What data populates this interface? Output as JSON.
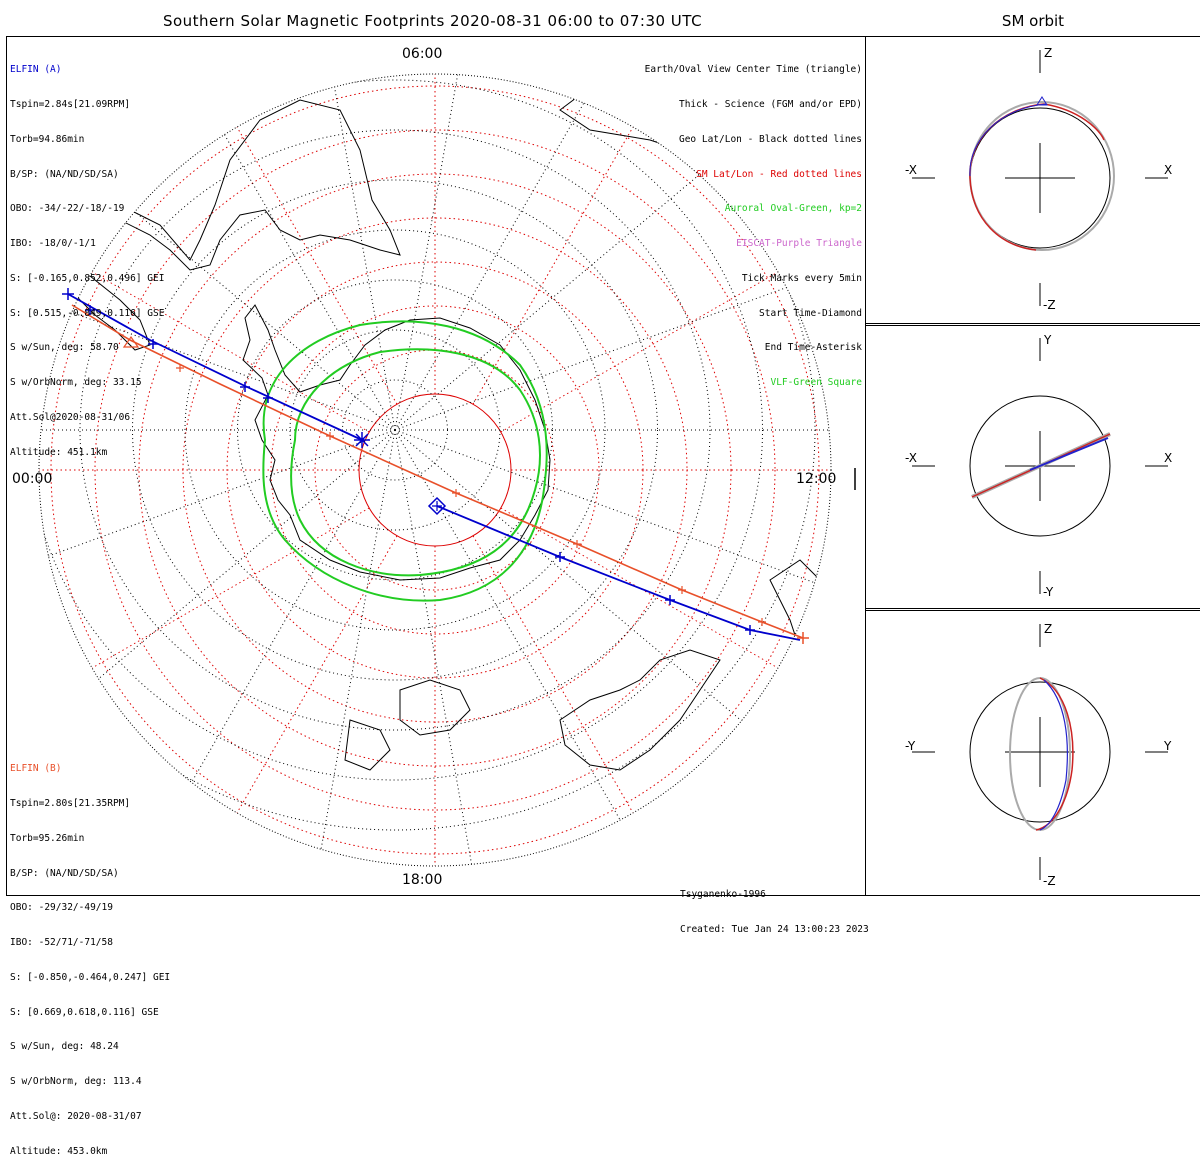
{
  "title": "Southern Solar Magnetic Footprints 2020-08-31 06:00 to 07:30 UTC",
  "sm_title": "SM orbit",
  "map": {
    "time_labels": {
      "top": "06:00",
      "left": "00:00",
      "right": "12:00",
      "bottom": "18:00"
    },
    "colors": {
      "elfin_a": "#0000cc",
      "elfin_b": "#e8502a",
      "oval": "#22cc22",
      "geo_grid": "#000000",
      "sm_grid": "#dd0000"
    }
  },
  "elfin_a": {
    "name": "ELFIN (A)",
    "lines": [
      "Tspin=2.84s[21.09RPM]",
      "Torb=94.86min",
      "B/SP: (NA/ND/SD/SA)",
      "OBO: -34/-22/-18/-19",
      "IBO: -18/0/-1/1",
      "S: [-0.165,0.852,0.496] GEI",
      "S: [0.515,-0.849,0.116] GSE",
      "S w/Sun, deg: 58.70",
      "S w/OrbNorm, deg: 33.15",
      "Att.Sol@2020-08-31/06",
      "Altitude: 451.1km"
    ]
  },
  "elfin_b": {
    "name": "ELFIN (B)",
    "lines": [
      "Tspin=2.80s[21.35RPM]",
      "Torb=95.26min",
      "B/SP: (NA/ND/SD/SA)",
      "OBO: -29/32/-49/19",
      "IBO: -52/71/-71/58",
      "S: [-0.850,-0.464,0.247] GEI",
      "S: [0.669,0.618,0.116] GSE",
      "S w/Sun, deg: 48.24",
      "S w/OrbNorm, deg: 113.4",
      "Att.Sol@: 2020-08-31/07",
      "Altitude: 453.0km"
    ]
  },
  "legend": [
    {
      "text": "Earth/Oval View Center Time (triangle)",
      "color": "#000000"
    },
    {
      "text": "Thick - Science (FGM and/or EPD)",
      "color": "#000000"
    },
    {
      "text": "Geo Lat/Lon - Black dotted lines",
      "color": "#000000"
    },
    {
      "text": "SM Lat/Lon - Red dotted lines",
      "color": "#dd0000"
    },
    {
      "text": "Auroral Oval-Green, kp=2",
      "color": "#22cc22"
    },
    {
      "text": "EISCAT-Purple Triangle",
      "color": "#cc66cc"
    },
    {
      "text": "Tick Marks every 5min",
      "color": "#000000"
    },
    {
      "text": "Start Time-Diamond",
      "color": "#000000"
    },
    {
      "text": "End Time-Asterisk",
      "color": "#000000"
    },
    {
      "text": "VLF-Green Square",
      "color": "#22cc22"
    }
  ],
  "footer": {
    "model": "Tsyganenko-1996",
    "created": "Created: Tue Jan 24 13:00:23 2023"
  },
  "sm_panels": [
    {
      "top_label": "Z",
      "bottom_label": "-Z",
      "left_label": "-X",
      "right_label": "X"
    },
    {
      "top_label": "Y",
      "bottom_label": "-Y",
      "left_label": "-X",
      "right_label": "X"
    },
    {
      "top_label": "Z",
      "bottom_label": "-Z",
      "left_label": "-Y",
      "right_label": "Y"
    }
  ]
}
